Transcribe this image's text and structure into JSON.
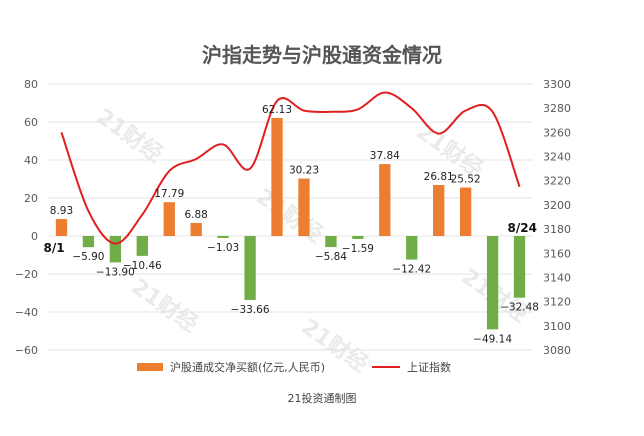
{
  "chart_data": {
    "type": "bar+line",
    "title": "沪指走势与沪股通资金情况",
    "credit": "21投资通制图",
    "watermark": "21财经",
    "start_label": "8/1",
    "end_label": "8/24",
    "left_axis": {
      "min": -60,
      "max": 80,
      "ticks": [
        80,
        60,
        40,
        20,
        0,
        -20,
        -40,
        -60
      ],
      "tick_labels": [
        "80",
        "60",
        "40",
        "20",
        "0",
        "−20",
        "−40",
        "−60"
      ]
    },
    "right_axis": {
      "min": 3080,
      "max": 3300,
      "ticks": [
        3300,
        3280,
        3260,
        3240,
        3220,
        3200,
        3180,
        3160,
        3140,
        3120,
        3100,
        3080
      ],
      "tick_labels": [
        "3300",
        "3280",
        "3260",
        "3240",
        "3220",
        "3200",
        "3180",
        "3160",
        "3140",
        "3120",
        "3100",
        "3080"
      ]
    },
    "bars": {
      "name": "沪股通成交净买额(亿元,人民币)",
      "values": [
        8.93,
        -5.9,
        -13.9,
        -10.46,
        17.79,
        6.88,
        -1.03,
        -33.66,
        62.13,
        30.23,
        -5.84,
        -1.59,
        37.84,
        -12.42,
        26.81,
        25.52,
        -49.14,
        -32.48
      ],
      "labels": [
        "8.93",
        "−5.90",
        "−13.90",
        "−10.46",
        "17.79",
        "6.88",
        "−1.03",
        "−33.66",
        "62.13",
        "30.23",
        "−5.84",
        "−1.59",
        "37.84",
        "−12.42",
        "26.81",
        "25.52",
        "−49.14",
        "−32.48"
      ],
      "positive_color": "#ed7d31",
      "negative_color": "#70ad47"
    },
    "line": {
      "name": "上证指数",
      "values": [
        3260,
        3195,
        3168,
        3192,
        3228,
        3238,
        3250,
        3230,
        3286,
        3278,
        3277,
        3279,
        3293,
        3280,
        3259,
        3278,
        3277,
        3215
      ],
      "color": "#e02020"
    },
    "legend_position": "bottom",
    "grid": "horizontal"
  }
}
